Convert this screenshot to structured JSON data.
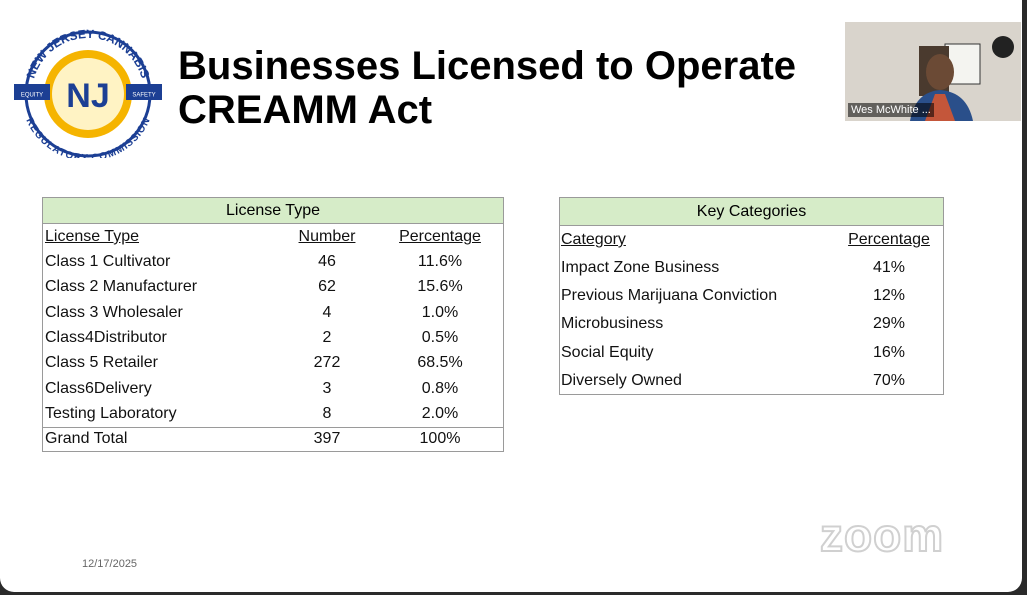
{
  "header": {
    "title_lines": [
      "Businesses Licensed to Operate",
      "CREAMM Act"
    ],
    "logo": {
      "top_text": "NEW JERSEY CANNABIS",
      "bottom_text": "REGULATORY COMMISSION",
      "left_text": "EQUITY",
      "right_text": "SAFETY",
      "center": "NJ"
    }
  },
  "license_table": {
    "title": "License Type",
    "columns": [
      "License Type",
      "Number",
      "Percentage"
    ],
    "rows": [
      [
        "Class 1 Cultivator",
        "46",
        "11.6%"
      ],
      [
        "Class 2 Manufacturer",
        "62",
        "15.6%"
      ],
      [
        "Class 3 Wholesaler",
        "4",
        "1.0%"
      ],
      [
        "Class4Distributor",
        "2",
        "0.5%"
      ],
      [
        "Class 5 Retailer",
        "272",
        "68.5%"
      ],
      [
        "Class6Delivery",
        "3",
        "0.8%"
      ],
      [
        "Testing Laboratory",
        "8",
        "2.0%"
      ]
    ],
    "total": [
      "Grand Total",
      "397",
      "100%"
    ]
  },
  "categories_table": {
    "title": "Key Categories",
    "columns": [
      "Category",
      "Percentage"
    ],
    "rows": [
      [
        "Impact Zone Business",
        "41%"
      ],
      [
        "Previous Marijuana Conviction",
        "12%"
      ],
      [
        "Microbusiness",
        "29%"
      ],
      [
        "Social Equity",
        "16%"
      ],
      [
        "Diversely Owned",
        "70%"
      ]
    ]
  },
  "footer": {
    "date": "12/17/2025",
    "watermark": "zoom"
  },
  "video": {
    "participant": "Wes McWhite ..."
  }
}
